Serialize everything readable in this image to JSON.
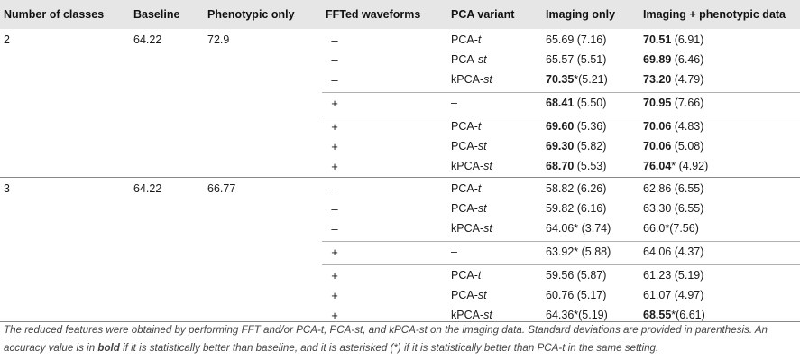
{
  "headers": [
    "Number of classes",
    "Baseline",
    "Phenotypic only",
    "FFTed waveforms",
    "PCA variant",
    "Imaging only",
    "Imaging + phenotypic data"
  ],
  "groups": [
    {
      "classes": "2",
      "baseline": "64.22",
      "phenotypic": "72.9",
      "rows": [
        {
          "fft": "–",
          "pca_base": "PCA-",
          "pca_var": "t",
          "img_val": "65.69",
          "img_sd": " (7.16)",
          "img_bold": false,
          "ip_val": "70.51",
          "ip_sd": " (6.91)",
          "ip_bold": true
        },
        {
          "fft": "–",
          "pca_base": "PCA-",
          "pca_var": "st",
          "img_val": "65.57",
          "img_sd": " (5.51)",
          "img_bold": false,
          "ip_val": "69.89",
          "ip_sd": " (6.46)",
          "ip_bold": true
        },
        {
          "fft": "–",
          "pca_base": "kPCA-",
          "pca_var": "st",
          "img_val": "70.35",
          "img_sd": "*(5.21)",
          "img_bold": true,
          "ip_val": "73.20",
          "ip_sd": " (4.79)",
          "ip_bold": true
        },
        {
          "fft": "+",
          "pca_base": "–",
          "pca_var": "",
          "img_val": "68.41",
          "img_sd": " (5.50)",
          "img_bold": true,
          "ip_val": "70.95",
          "ip_sd": " (7.66)",
          "ip_bold": true
        },
        {
          "fft": "+",
          "pca_base": "PCA-",
          "pca_var": "t",
          "img_val": "69.60",
          "img_sd": " (5.36)",
          "img_bold": true,
          "ip_val": "70.06",
          "ip_sd": " (4.83)",
          "ip_bold": true
        },
        {
          "fft": "+",
          "pca_base": "PCA-",
          "pca_var": "st",
          "img_val": "69.30",
          "img_sd": " (5.82)",
          "img_bold": true,
          "ip_val": "70.06",
          "ip_sd": " (5.08)",
          "ip_bold": true
        },
        {
          "fft": "+",
          "pca_base": "kPCA-",
          "pca_var": "st",
          "img_val": "68.70",
          "img_sd": " (5.53)",
          "img_bold": true,
          "ip_val": "76.04",
          "ip_sd": "* (4.92)",
          "ip_bold": true
        }
      ]
    },
    {
      "classes": "3",
      "baseline": "64.22",
      "phenotypic": "66.77",
      "rows": [
        {
          "fft": "–",
          "pca_base": "PCA-",
          "pca_var": "t",
          "img_val": "58.82",
          "img_sd": " (6.26)",
          "img_bold": false,
          "ip_val": "62.86",
          "ip_sd": " (6.55)",
          "ip_bold": false
        },
        {
          "fft": "–",
          "pca_base": "PCA-",
          "pca_var": "st",
          "img_val": "59.82",
          "img_sd": " (6.16)",
          "img_bold": false,
          "ip_val": "63.30",
          "ip_sd": " (6.55)",
          "ip_bold": false
        },
        {
          "fft": "–",
          "pca_base": "kPCA-",
          "pca_var": "st",
          "img_val": "64.06",
          "img_sd": "* (3.74)",
          "img_bold": false,
          "ip_val": "66.0",
          "ip_sd": "*(7.56)",
          "ip_bold": false
        },
        {
          "fft": "+",
          "pca_base": "–",
          "pca_var": "",
          "img_val": "63.92",
          "img_sd": "* (5.88)",
          "img_bold": false,
          "ip_val": "64.06",
          "ip_sd": " (4.37)",
          "ip_bold": false
        },
        {
          "fft": "+",
          "pca_base": "PCA-",
          "pca_var": "t",
          "img_val": "59.56",
          "img_sd": " (5.87)",
          "img_bold": false,
          "ip_val": "61.23",
          "ip_sd": " (5.19)",
          "ip_bold": false
        },
        {
          "fft": "+",
          "pca_base": "PCA-",
          "pca_var": "st",
          "img_val": "60.76",
          "img_sd": " (5.17)",
          "img_bold": false,
          "ip_val": "61.07",
          "ip_sd": " (4.97)",
          "ip_bold": false
        },
        {
          "fft": "+",
          "pca_base": "kPCA-",
          "pca_var": "st",
          "img_val": "64.36",
          "img_sd": "*(5.19)",
          "img_bold": false,
          "ip_val": "68.55",
          "ip_sd": "*(6.61)",
          "ip_bold": true
        }
      ]
    }
  ],
  "footnote": "The reduced features were obtained by performing FFT and/or PCA-t, PCA-st, and kPCA-st on the imaging data. Standard deviations are provided in parenthesis. An accuracy value is in bold if it is statistically better than baseline, and it is asterisked (*) if it is statistically better than PCA-t in the same setting."
}
